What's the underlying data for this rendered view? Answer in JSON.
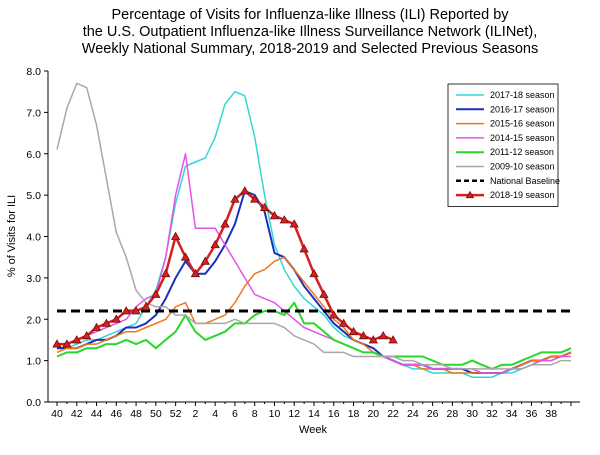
{
  "chart_data": {
    "type": "line",
    "title_lines": [
      "Percentage of Visits for Influenza-like Illness (ILI) Reported by",
      "the U.S. Outpatient Influenza-like Illness Surveillance Network (ILINet),",
      "Weekly National Summary, 2018-2019 and Selected Previous Seasons"
    ],
    "xlabel": "Week",
    "ylabel": "% of Visits for ILI",
    "ylim": [
      0,
      8
    ],
    "yticks": [
      "0.0",
      "1.0",
      "2.0",
      "3.0",
      "4.0",
      "5.0",
      "6.0",
      "7.0",
      "8.0"
    ],
    "x_week_ticks": [
      "40",
      "42",
      "44",
      "46",
      "48",
      "50",
      "52",
      "2",
      "4",
      "6",
      "8",
      "10",
      "12",
      "14",
      "16",
      "18",
      "20",
      "22",
      "24",
      "26",
      "28",
      "30",
      "32",
      "34",
      "36",
      "38"
    ],
    "legend_position": "top-right",
    "grid": false,
    "series": [
      {
        "name": "2017-18 season",
        "color": "#33d6d6",
        "width": 1.5,
        "dash": "",
        "markers": false,
        "values": [
          1.3,
          1.3,
          1.4,
          1.5,
          1.5,
          1.6,
          1.7,
          1.8,
          1.9,
          2.3,
          2.7,
          3.5,
          4.8,
          5.7,
          5.8,
          5.9,
          6.4,
          7.2,
          7.5,
          7.4,
          6.4,
          5.0,
          3.8,
          3.2,
          2.8,
          2.5,
          2.3,
          2.1,
          1.8,
          1.6,
          1.5,
          1.4,
          1.2,
          1.1,
          1.0,
          0.9,
          0.8,
          0.8,
          0.7,
          0.7,
          0.7,
          0.7,
          0.6,
          0.6,
          0.6,
          0.7,
          0.7,
          0.8,
          0.9,
          1.0,
          1.0,
          1.1,
          1.2
        ]
      },
      {
        "name": "2016-17 season",
        "color": "#1c2fbe",
        "width": 2,
        "dash": "",
        "markers": false,
        "values": [
          1.3,
          1.3,
          1.3,
          1.4,
          1.5,
          1.5,
          1.6,
          1.8,
          1.8,
          1.9,
          2.1,
          2.5,
          3.0,
          3.4,
          3.1,
          3.1,
          3.4,
          3.8,
          4.3,
          5.1,
          5.0,
          4.6,
          3.6,
          3.5,
          3.2,
          2.8,
          2.5,
          2.2,
          1.9,
          1.7,
          1.5,
          1.4,
          1.3,
          1.1,
          1.0,
          0.9,
          0.9,
          0.9,
          0.8,
          0.8,
          0.8,
          0.8,
          0.7,
          0.7,
          0.7,
          0.7,
          0.8,
          0.9,
          1.0,
          1.0,
          1.1,
          1.1,
          1.2
        ]
      },
      {
        "name": "2015-16 season",
        "color": "#f07818",
        "width": 1.5,
        "dash": "",
        "markers": false,
        "values": [
          1.2,
          1.3,
          1.3,
          1.4,
          1.4,
          1.5,
          1.6,
          1.7,
          1.7,
          1.8,
          1.9,
          2.0,
          2.3,
          2.4,
          1.9,
          1.9,
          2.0,
          2.1,
          2.4,
          2.8,
          3.1,
          3.2,
          3.4,
          3.5,
          3.2,
          2.9,
          2.6,
          2.3,
          2.0,
          1.8,
          1.5,
          1.4,
          1.2,
          1.1,
          1.0,
          0.9,
          0.9,
          0.8,
          0.8,
          0.8,
          0.7,
          0.7,
          0.7,
          0.7,
          0.7,
          0.7,
          0.8,
          0.9,
          1.0,
          1.0,
          1.1,
          1.1,
          1.2
        ]
      },
      {
        "name": "2014-15 season",
        "color": "#e254e8",
        "width": 1.5,
        "dash": "",
        "markers": false,
        "values": [
          1.4,
          1.4,
          1.5,
          1.6,
          1.7,
          1.8,
          1.9,
          2.0,
          2.3,
          2.5,
          2.6,
          3.5,
          5.0,
          6.0,
          4.2,
          4.2,
          4.2,
          3.8,
          3.4,
          3.0,
          2.6,
          2.5,
          2.4,
          2.2,
          2.0,
          1.8,
          1.7,
          1.6,
          1.5,
          1.4,
          1.3,
          1.2,
          1.2,
          1.1,
          1.0,
          0.9,
          0.9,
          0.9,
          0.8,
          0.8,
          0.8,
          0.8,
          0.8,
          0.7,
          0.7,
          0.7,
          0.8,
          0.8,
          0.9,
          1.0,
          1.0,
          1.1,
          1.1
        ]
      },
      {
        "name": "2011-12 season",
        "color": "#28d828",
        "width": 2,
        "dash": "",
        "markers": false,
        "values": [
          1.1,
          1.2,
          1.2,
          1.3,
          1.3,
          1.4,
          1.4,
          1.5,
          1.4,
          1.5,
          1.3,
          1.5,
          1.7,
          2.1,
          1.7,
          1.5,
          1.6,
          1.7,
          1.9,
          1.9,
          2.1,
          2.2,
          2.2,
          2.1,
          2.4,
          1.9,
          1.9,
          1.7,
          1.5,
          1.4,
          1.3,
          1.2,
          1.2,
          1.1,
          1.1,
          1.1,
          1.1,
          1.1,
          1.0,
          0.9,
          0.9,
          0.9,
          1.0,
          0.9,
          0.8,
          0.9,
          0.9,
          1.0,
          1.1,
          1.2,
          1.2,
          1.2,
          1.3
        ]
      },
      {
        "name": "2009-10 season",
        "color": "#a8a8a8",
        "width": 1.5,
        "dash": "",
        "markers": false,
        "values": [
          6.1,
          7.1,
          7.7,
          7.6,
          6.7,
          5.4,
          4.1,
          3.5,
          2.7,
          2.4,
          2.3,
          2.3,
          2.1,
          2.1,
          1.9,
          1.9,
          1.9,
          1.9,
          2.0,
          1.9,
          1.9,
          1.9,
          1.9,
          1.8,
          1.6,
          1.5,
          1.4,
          1.2,
          1.2,
          1.2,
          1.1,
          1.1,
          1.1,
          1.1,
          1.1,
          1.0,
          1.0,
          0.9,
          0.9,
          0.9,
          0.8,
          0.8,
          0.8,
          0.8,
          0.8,
          0.8,
          0.8,
          0.8,
          0.9,
          0.9,
          0.9,
          1.0,
          1.0
        ]
      },
      {
        "name": "National Baseline",
        "color": "#000000",
        "width": 3,
        "dash": "9 5",
        "markers": false,
        "values": [
          2.2,
          2.2,
          2.2,
          2.2,
          2.2,
          2.2,
          2.2,
          2.2,
          2.2,
          2.2,
          2.2,
          2.2,
          2.2,
          2.2,
          2.2,
          2.2,
          2.2,
          2.2,
          2.2,
          2.2,
          2.2,
          2.2,
          2.2,
          2.2,
          2.2,
          2.2,
          2.2,
          2.2,
          2.2,
          2.2,
          2.2,
          2.2,
          2.2,
          2.2,
          2.2,
          2.2,
          2.2,
          2.2,
          2.2,
          2.2,
          2.2,
          2.2,
          2.2,
          2.2,
          2.2,
          2.2,
          2.2,
          2.2,
          2.2,
          2.2,
          2.2,
          2.2,
          2.2
        ]
      },
      {
        "name": "2018-19 season",
        "color": "#d42020",
        "width": 2.5,
        "dash": "",
        "markers": true,
        "values": [
          1.4,
          1.4,
          1.5,
          1.6,
          1.8,
          1.9,
          2.0,
          2.2,
          2.2,
          2.3,
          2.6,
          3.1,
          4.0,
          3.5,
          3.1,
          3.4,
          3.8,
          4.3,
          4.9,
          5.1,
          4.9,
          4.7,
          4.5,
          4.4,
          4.3,
          3.7,
          3.1,
          2.6,
          2.1,
          1.9,
          1.7,
          1.6,
          1.5,
          1.6,
          1.5
        ]
      }
    ]
  }
}
